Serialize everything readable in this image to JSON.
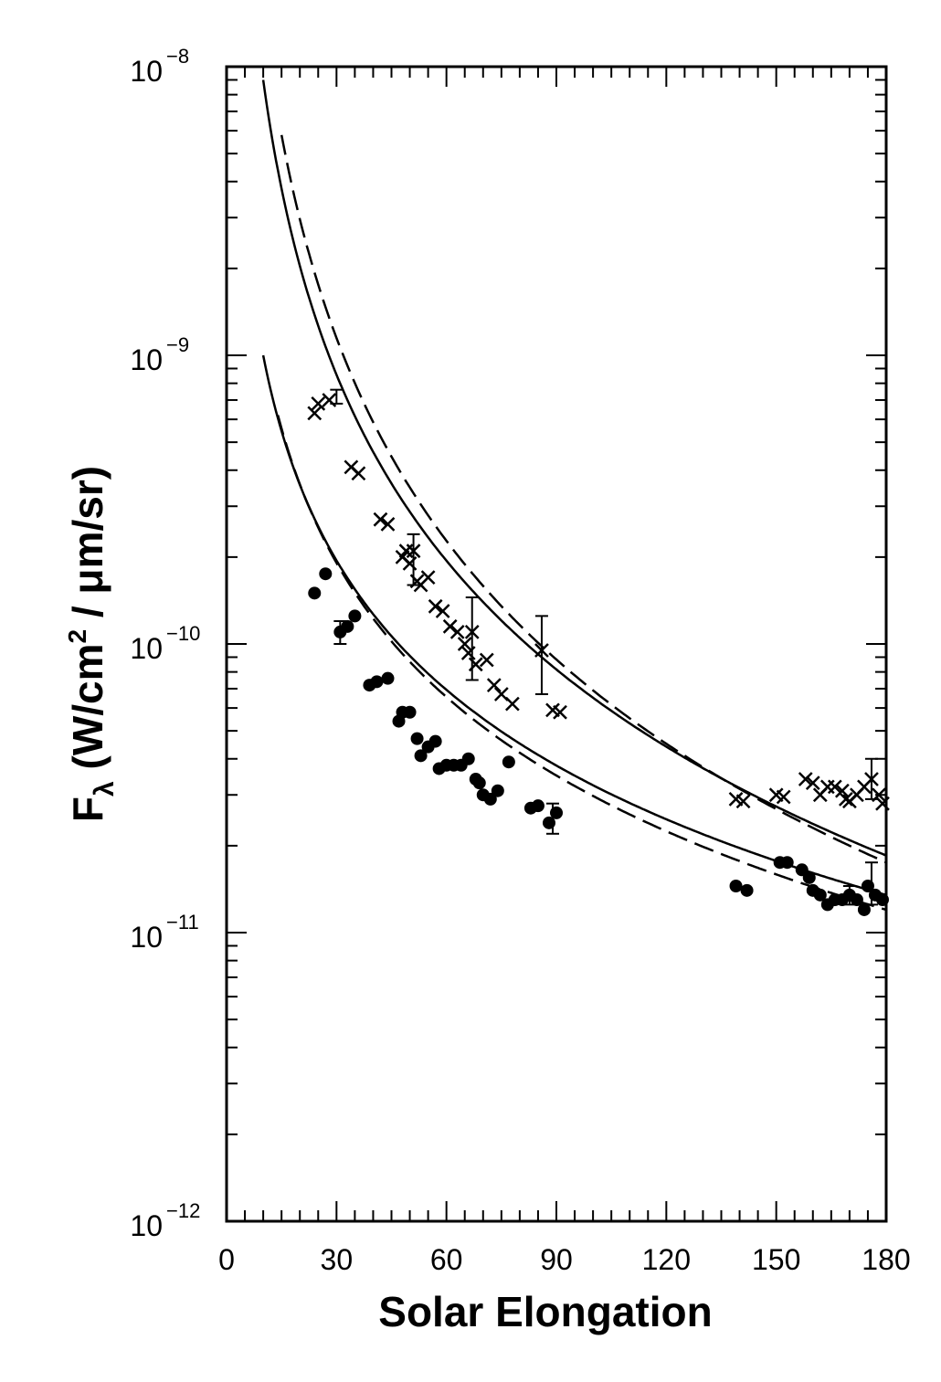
{
  "chart_data": {
    "type": "scatter",
    "title": "",
    "xlabel": "Solar Elongation",
    "ylabel": {
      "base": "F",
      "subscript": "λ",
      "text_open": " (W/cm",
      "superscript": "2",
      "text_close": " / μm/sr)"
    },
    "xlim": [
      0,
      180
    ],
    "ylim": [
      1e-12,
      1e-08
    ],
    "yscale": "log",
    "grid": false,
    "x_ticks": [
      "0",
      "30",
      "60",
      "90",
      "120",
      "150",
      "180"
    ],
    "y_ticks": [
      {
        "base": "10",
        "exp": "−8",
        "value": 1e-08
      },
      {
        "base": "10",
        "exp": "−9",
        "value": 1e-09
      },
      {
        "base": "10",
        "exp": "−10",
        "value": 1e-10
      },
      {
        "base": "10",
        "exp": "−11",
        "value": 1e-11
      },
      {
        "base": "10",
        "exp": "−12",
        "value": 1e-12
      }
    ],
    "series": [
      {
        "marker": "x",
        "points": [
          [
            24,
            6.3e-10
          ],
          [
            25,
            6.8e-10
          ],
          [
            28,
            7e-10
          ],
          [
            34,
            4.1e-10
          ],
          [
            36,
            3.9e-10
          ],
          [
            42,
            2.7e-10
          ],
          [
            44,
            2.6e-10
          ],
          [
            48,
            2e-10
          ],
          [
            49,
            2.1e-10
          ],
          [
            50,
            1.9e-10
          ],
          [
            51,
            2.1e-10
          ],
          [
            52,
            1.65e-10
          ],
          [
            53,
            1.6e-10
          ],
          [
            55,
            1.7e-10
          ],
          [
            57,
            1.35e-10
          ],
          [
            59,
            1.3e-10
          ],
          [
            61,
            1.15e-10
          ],
          [
            63,
            1.1e-10
          ],
          [
            65,
            1e-10
          ],
          [
            66,
            9.3e-11
          ],
          [
            67,
            1.1e-10
          ],
          [
            68,
            8.5e-11
          ],
          [
            71,
            8.8e-11
          ],
          [
            73,
            7.2e-11
          ],
          [
            75,
            6.7e-11
          ],
          [
            78,
            6.2e-11
          ],
          [
            86,
            9.5e-11
          ],
          [
            89,
            5.9e-11
          ],
          [
            91,
            5.8e-11
          ],
          [
            139,
            2.9e-11
          ],
          [
            141,
            2.85e-11
          ],
          [
            150,
            3e-11
          ],
          [
            152,
            2.95e-11
          ],
          [
            158,
            3.4e-11
          ],
          [
            160,
            3.3e-11
          ],
          [
            162,
            3e-11
          ],
          [
            164,
            3.2e-11
          ],
          [
            166,
            3.2e-11
          ],
          [
            168,
            3.1e-11
          ],
          [
            169,
            2.9e-11
          ],
          [
            170,
            2.85e-11
          ],
          [
            172,
            3e-11
          ],
          [
            174,
            3.2e-11
          ],
          [
            176,
            3.4e-11
          ],
          [
            178,
            3e-11
          ],
          [
            179,
            2.8e-11
          ]
        ],
        "error_bars": [
          [
            30,
            6.8e-10,
            7.6e-10
          ],
          [
            51,
            1.6e-10,
            2.4e-10
          ],
          [
            67,
            7.5e-11,
            1.45e-10
          ],
          [
            86,
            6.7e-11,
            1.25e-10
          ],
          [
            176,
            2.9e-11,
            4e-11
          ]
        ]
      },
      {
        "marker": "filled-circle",
        "points": [
          [
            24,
            1.5e-10
          ],
          [
            27,
            1.75e-10
          ],
          [
            31,
            1.1e-10
          ],
          [
            33,
            1.15e-10
          ],
          [
            35,
            1.25e-10
          ],
          [
            39,
            7.2e-11
          ],
          [
            41,
            7.4e-11
          ],
          [
            44,
            7.6e-11
          ],
          [
            47,
            5.4e-11
          ],
          [
            48,
            5.8e-11
          ],
          [
            50,
            5.8e-11
          ],
          [
            52,
            4.7e-11
          ],
          [
            53,
            4.1e-11
          ],
          [
            55,
            4.4e-11
          ],
          [
            57,
            4.6e-11
          ],
          [
            58,
            3.7e-11
          ],
          [
            60,
            3.8e-11
          ],
          [
            62,
            3.8e-11
          ],
          [
            64,
            3.8e-11
          ],
          [
            66,
            4e-11
          ],
          [
            68,
            3.4e-11
          ],
          [
            69,
            3.3e-11
          ],
          [
            70,
            3e-11
          ],
          [
            72,
            2.9e-11
          ],
          [
            74,
            3.1e-11
          ],
          [
            77,
            3.9e-11
          ],
          [
            83,
            2.7e-11
          ],
          [
            85,
            2.75e-11
          ],
          [
            88,
            2.4e-11
          ],
          [
            90,
            2.6e-11
          ],
          [
            139,
            1.45e-11
          ],
          [
            142,
            1.4e-11
          ],
          [
            151,
            1.75e-11
          ],
          [
            153,
            1.75e-11
          ],
          [
            157,
            1.65e-11
          ],
          [
            159,
            1.55e-11
          ],
          [
            160,
            1.4e-11
          ],
          [
            162,
            1.35e-11
          ],
          [
            164,
            1.25e-11
          ],
          [
            166,
            1.3e-11
          ],
          [
            168,
            1.3e-11
          ],
          [
            170,
            1.35e-11
          ],
          [
            172,
            1.3e-11
          ],
          [
            174,
            1.2e-11
          ],
          [
            175,
            1.45e-11
          ],
          [
            177,
            1.35e-11
          ],
          [
            179,
            1.3e-11
          ]
        ],
        "error_bars": [
          [
            31,
            1e-10,
            1.2e-10
          ],
          [
            89,
            2.2e-11,
            2.8e-11
          ],
          [
            170,
            1.25e-11,
            1.45e-11
          ],
          [
            176,
            1.25e-11,
            1.75e-11
          ]
        ]
      }
    ],
    "model_curves": [
      {
        "style": "solid",
        "anchor_x": 10,
        "anchor_y": 9e-09,
        "end_y": 1.85e-11
      },
      {
        "style": "dashed",
        "anchor_x": 15,
        "anchor_y": 5.8e-09,
        "end_y": 1.75e-11
      },
      {
        "style": "solid",
        "anchor_x": 10,
        "anchor_y": 1e-09,
        "end_y": 1.35e-11
      },
      {
        "style": "dashed",
        "anchor_x": 14,
        "anchor_y": 6.2e-10,
        "end_y": 1.2e-11
      }
    ]
  }
}
